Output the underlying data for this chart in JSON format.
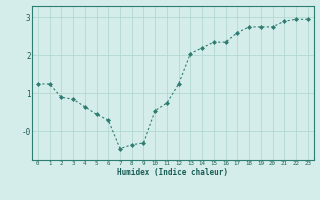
{
  "x": [
    0,
    1,
    2,
    3,
    4,
    5,
    6,
    7,
    8,
    9,
    10,
    11,
    12,
    13,
    14,
    15,
    16,
    17,
    18,
    19,
    20,
    21,
    22,
    23
  ],
  "y": [
    1.25,
    1.25,
    0.9,
    0.85,
    0.65,
    0.45,
    0.3,
    -0.45,
    -0.35,
    -0.3,
    0.55,
    0.75,
    1.25,
    2.05,
    2.2,
    2.35,
    2.35,
    2.6,
    2.75,
    2.75,
    2.75,
    2.9,
    2.95,
    2.95
  ],
  "xlabel": "Humidex (Indice chaleur)",
  "ylim": [
    -0.75,
    3.3
  ],
  "xlim": [
    -0.5,
    23.5
  ],
  "line_color": "#2e7d72",
  "marker_color": "#2e7d72",
  "bg_color": "#d4edea",
  "grid_color": "#aed4ce",
  "axis_color": "#2e7d72",
  "text_color": "#1a5c54",
  "font": "monospace"
}
